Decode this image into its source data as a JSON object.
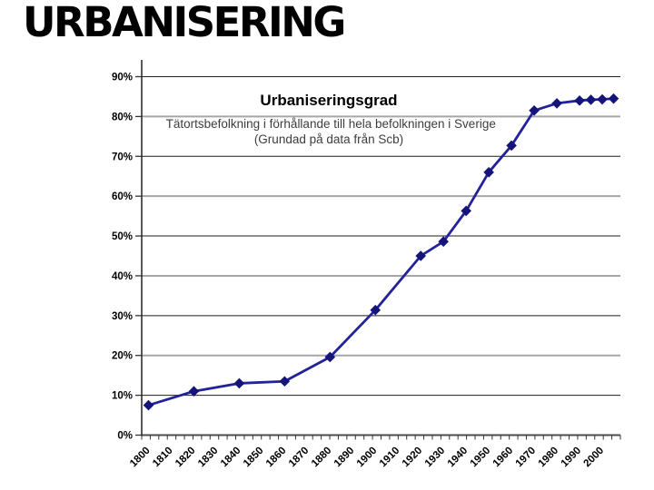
{
  "slide": {
    "title": "URBANISERING"
  },
  "chart_data": {
    "type": "line",
    "title": "Urbaniseringsgrad",
    "subtitle": "Tätortsbefolkning i förhållande till hela befolkningen i Sverige",
    "subtitle2": "(Grundad på data från Scb)",
    "series": [
      {
        "name": "Urbaniseringsgrad",
        "x": [
          1800,
          1820,
          1840,
          1860,
          1880,
          1900,
          1920,
          1930,
          1940,
          1950,
          1960,
          1970,
          1980,
          1990,
          1995,
          2000,
          2005
        ],
        "values": [
          7.5,
          11,
          13,
          13.5,
          19.6,
          31.4,
          45,
          48.6,
          56.3,
          66,
          72.7,
          81.5,
          83.3,
          84.0,
          84.2,
          84.3,
          84.5
        ]
      }
    ],
    "xlim": [
      1797,
      2008
    ],
    "ylim": [
      0,
      90
    ],
    "x_tick_labels": [
      "1800",
      "1810",
      "1820",
      "1830",
      "1840",
      "1850",
      "1860",
      "1870",
      "1880",
      "1890",
      "1900",
      "1910",
      "1920",
      "1930",
      "1940",
      "1950",
      "1960",
      "1970",
      "1980",
      "1990",
      "2000"
    ],
    "y_ticks": [
      0,
      10,
      20,
      30,
      40,
      50,
      60,
      70,
      80,
      90
    ],
    "y_tick_suffix": "%",
    "grid": "horizontal",
    "legend": "none",
    "colors": {
      "line": "#22229a",
      "marker": "#14147a",
      "grid_gray": "#a6a6a6",
      "grid_dark": "#1f1f1f",
      "axis": "#4d4d4d",
      "tick": "#333333",
      "label": "#000000"
    }
  }
}
